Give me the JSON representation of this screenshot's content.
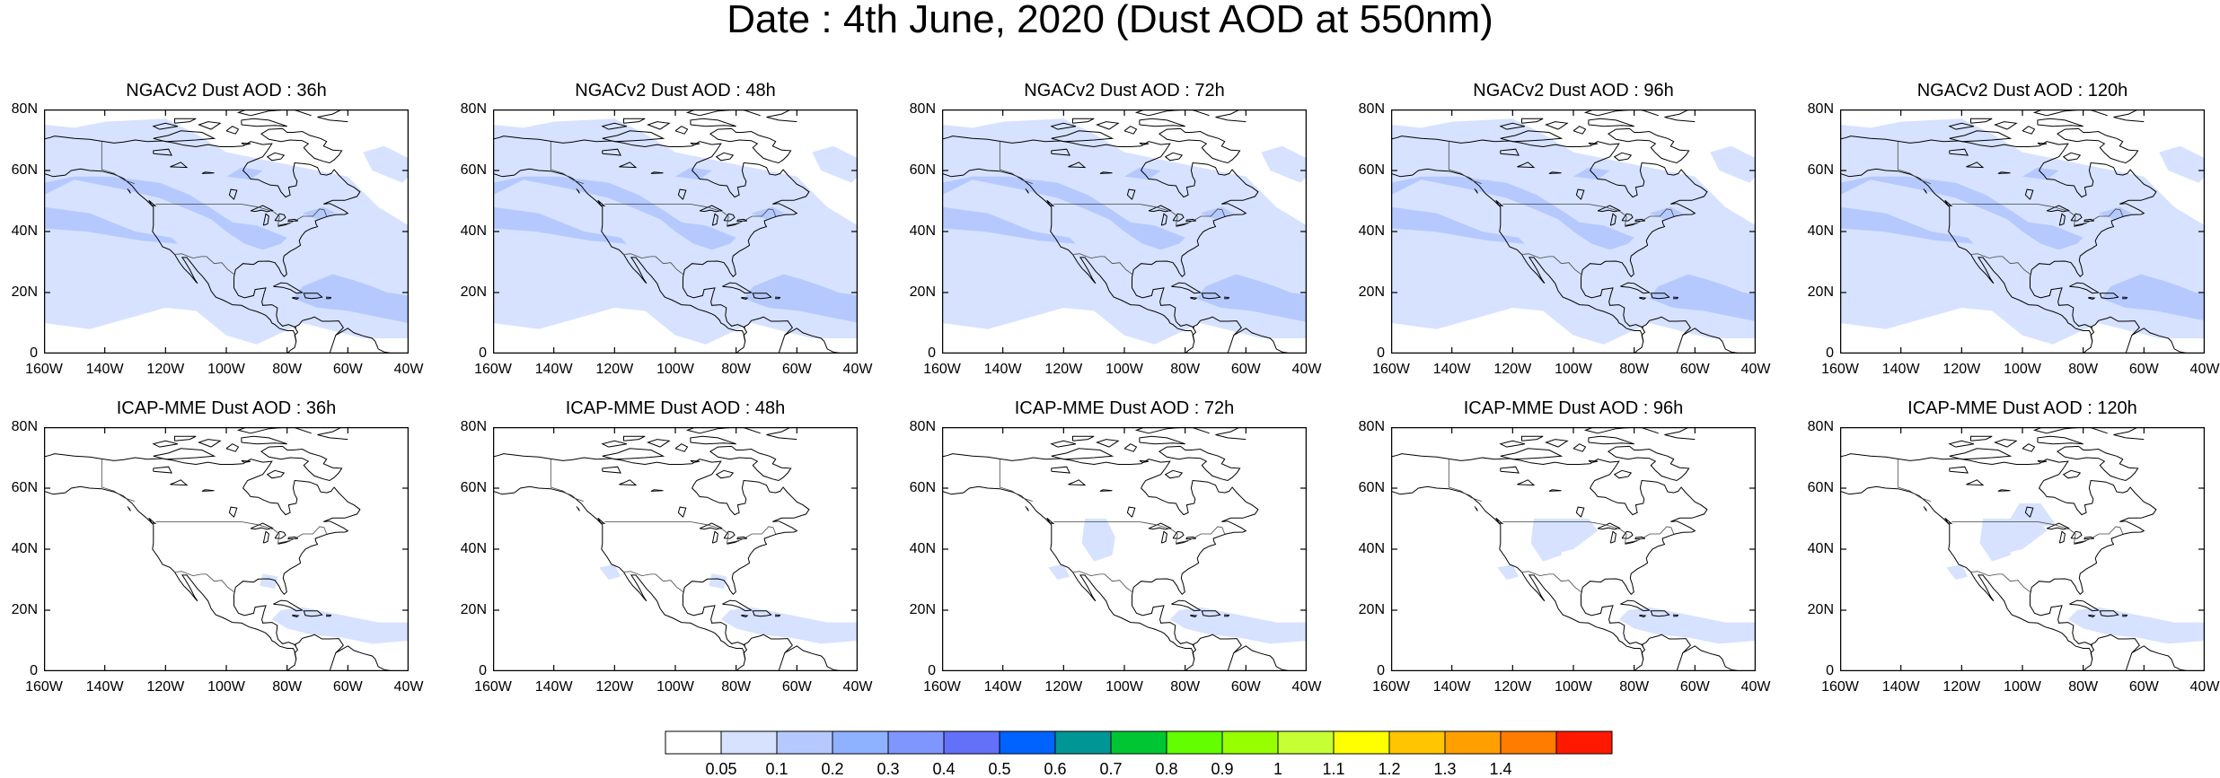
{
  "title": "Date : 4th June, 2020 (Dust AOD at 550nm)",
  "panels": [
    {
      "title": "NGACv2 Dust AOD : 36h",
      "model": "ngac",
      "lead": 36
    },
    {
      "title": "NGACv2 Dust AOD : 48h",
      "model": "ngac",
      "lead": 48
    },
    {
      "title": "NGACv2 Dust AOD : 72h",
      "model": "ngac",
      "lead": 72
    },
    {
      "title": "NGACv2 Dust AOD : 96h",
      "model": "ngac",
      "lead": 96
    },
    {
      "title": "NGACv2 Dust AOD : 120h",
      "model": "ngac",
      "lead": 120
    },
    {
      "title": "ICAP-MME Dust AOD : 36h",
      "model": "icap",
      "lead": 36
    },
    {
      "title": "ICAP-MME Dust AOD : 48h",
      "model": "icap",
      "lead": 48
    },
    {
      "title": "ICAP-MME Dust AOD : 72h",
      "model": "icap",
      "lead": 72
    },
    {
      "title": "ICAP-MME Dust AOD : 96h",
      "model": "icap",
      "lead": 96
    },
    {
      "title": "ICAP-MME Dust AOD : 120h",
      "model": "icap",
      "lead": 120
    }
  ],
  "axes": {
    "lat_ticks": [
      "80N",
      "60N",
      "40N",
      "20N",
      "0"
    ],
    "lon_ticks": [
      "160W",
      "140W",
      "120W",
      "100W",
      "80W",
      "60W",
      "40W"
    ]
  },
  "colorbar": {
    "colors": [
      "#ffffff",
      "#d6e2ff",
      "#b5c9ff",
      "#8eb2ff",
      "#7f96ff",
      "#6370f8",
      "#0062ff",
      "#009696",
      "#00c633",
      "#63ff00",
      "#96ff00",
      "#c6ff33",
      "#ffff00",
      "#ffc600",
      "#ffa000",
      "#ff7c00",
      "#ff1900"
    ],
    "labels": [
      "0.05",
      "0.1",
      "0.2",
      "0.3",
      "0.4",
      "0.5",
      "0.6",
      "0.7",
      "0.8",
      "0.9",
      "1",
      "1.1",
      "1.2",
      "1.3",
      "1.4"
    ]
  },
  "colors": {
    "low_aod": "#d6e2ff",
    "mid_aod": "#b5c9ff",
    "coast": "#000000"
  }
}
